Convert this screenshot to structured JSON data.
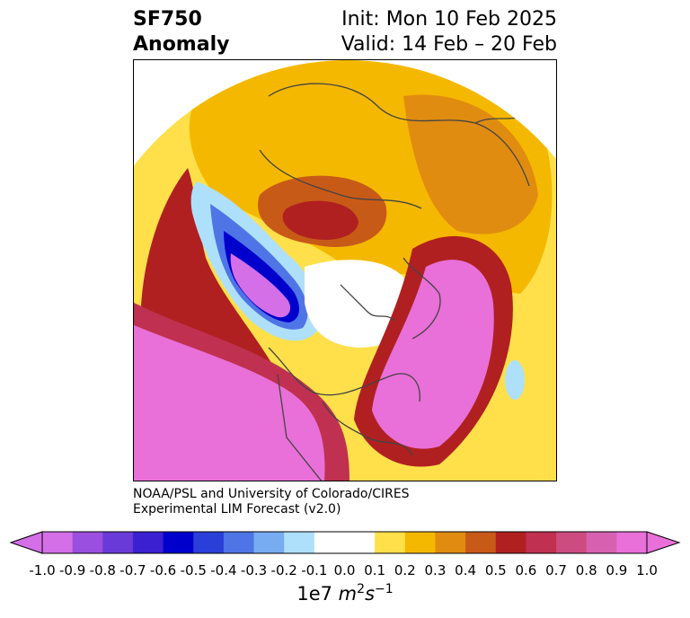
{
  "title": {
    "left_line1": "SF750",
    "left_line2": "Anomaly",
    "right_line1": "Init: Mon 10 Feb 2025",
    "right_line2": "Valid: 14 Feb – 20 Feb"
  },
  "credit": {
    "line1": "NOAA/PSL and University of Colorado/CIRES",
    "line2": "Experimental LIM Forecast (v2.0)"
  },
  "colorbar": {
    "unit_prefix": "1e7 ",
    "unit_m": "m",
    "unit_m_exp": "2",
    "unit_s": "s",
    "unit_s_exp": "−1",
    "ticks": [
      "-1.0",
      "-0.9",
      "-0.8",
      "-0.7",
      "-0.6",
      "-0.5",
      "-0.4",
      "-0.3",
      "-0.2",
      "-0.1",
      "0.0",
      "0.1",
      "0.2",
      "0.3",
      "0.4",
      "0.5",
      "0.6",
      "0.7",
      "0.8",
      "0.9",
      "1.0"
    ],
    "colors": [
      "#d46fe8",
      "#9b4fe0",
      "#6a3ad8",
      "#3a20d0",
      "#0000cc",
      "#2a3fd8",
      "#4f74e6",
      "#78acf2",
      "#aee0fb",
      "#ffffff",
      "#ffffff",
      "#ffe04a",
      "#f5b800",
      "#e08c10",
      "#c85a18",
      "#b02020",
      "#c03050",
      "#cc4c80",
      "#d860b0",
      "#e870d8"
    ]
  },
  "map": {
    "colors": {
      "light_yellow": "#ffe04a",
      "yellow": "#f5b800",
      "orange": "#e08c10",
      "dark_orange": "#c85a18",
      "red": "#b02020",
      "crimson": "#c03050",
      "magenta_dark": "#cc4c80",
      "magenta": "#d860b0",
      "pink": "#e870d8",
      "light_blue": "#aee0fb",
      "mid_blue": "#78acf2",
      "blue": "#4f74e6",
      "royal_blue": "#2a3fd8",
      "deep_blue": "#0000cc",
      "violet": "#6a3ad8",
      "purple": "#d46fe8",
      "coast": "#444444"
    }
  }
}
